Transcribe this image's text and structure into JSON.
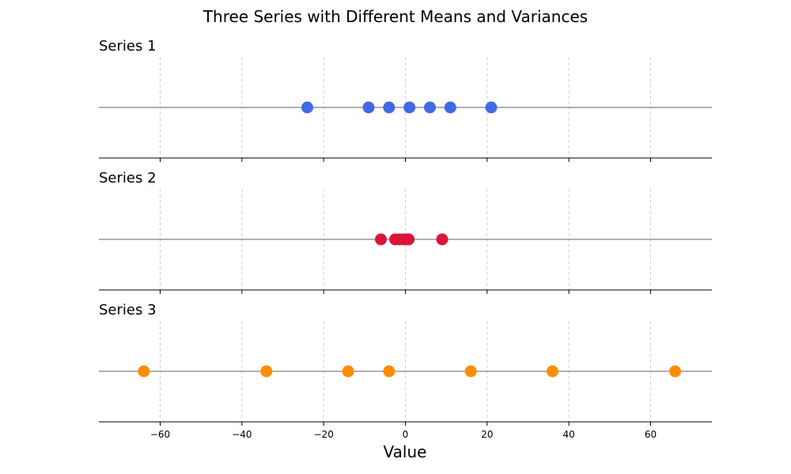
{
  "chart_data": {
    "type": "scatter",
    "title": "Three Series with Different Means and Variances",
    "xlabel": "Value",
    "xlim": [
      -75,
      75
    ],
    "xticks": [
      -60,
      -40,
      -20,
      0,
      20,
      40,
      60
    ],
    "xtick_labels": [
      "−60",
      "−40",
      "−20",
      "0",
      "20",
      "40",
      "60"
    ],
    "grid": "vertical-dashed",
    "series": [
      {
        "name": "Series 1",
        "color": "#4169E1",
        "values": [
          -24,
          -9,
          -4,
          1,
          6,
          11,
          21
        ]
      },
      {
        "name": "Series 2",
        "color": "#DC143C",
        "values": [
          -6,
          -2.5,
          -1.5,
          -0.5,
          0.2,
          0.8,
          9
        ]
      },
      {
        "name": "Series 3",
        "color": "#FF8C00",
        "values": [
          -64,
          -34,
          -14,
          -4,
          16,
          36,
          66
        ]
      }
    ]
  }
}
